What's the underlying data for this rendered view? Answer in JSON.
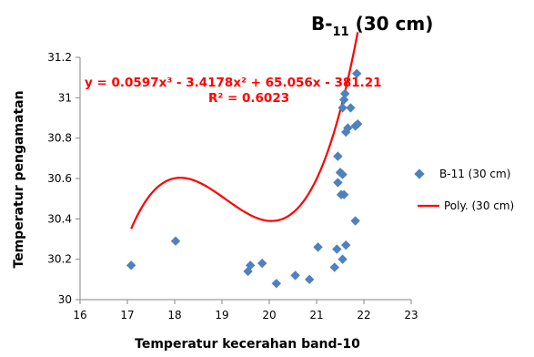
{
  "chart_data": {
    "type": "scatter",
    "title": {
      "prefix": "B-",
      "subscript": "11",
      "suffix": " (30 cm)"
    },
    "xlabel": "Temperatur kecerahan band-10",
    "ylabel": "Temperatur pengamatan",
    "xlim": [
      16,
      23
    ],
    "ylim": [
      30,
      31.2
    ],
    "x_ticks": [
      16,
      17,
      18,
      19,
      20,
      21,
      22,
      23
    ],
    "y_ticks": [
      30,
      30.2,
      30.4,
      30.6,
      30.8,
      31,
      31.2
    ],
    "x_tick_labels": [
      "16",
      "17",
      "18",
      "19",
      "20",
      "21",
      "22",
      "23"
    ],
    "y_tick_labels": [
      "30",
      "30.2",
      "30.4",
      "30.6",
      "30.8",
      "31",
      "31.2"
    ],
    "grid": false,
    "legend_position": "right",
    "series": [
      {
        "name": "B-11 (30 cm)",
        "color": "#4F81BD",
        "marker": "diamond",
        "points": [
          {
            "x": 17.08,
            "y": 30.17
          },
          {
            "x": 18.02,
            "y": 30.29
          },
          {
            "x": 19.55,
            "y": 30.14
          },
          {
            "x": 19.6,
            "y": 30.17
          },
          {
            "x": 19.85,
            "y": 30.18
          },
          {
            "x": 20.15,
            "y": 30.08
          },
          {
            "x": 20.55,
            "y": 30.12
          },
          {
            "x": 20.85,
            "y": 30.1
          },
          {
            "x": 21.03,
            "y": 30.26
          },
          {
            "x": 21.38,
            "y": 30.16
          },
          {
            "x": 21.43,
            "y": 30.25
          },
          {
            "x": 21.55,
            "y": 30.2
          },
          {
            "x": 21.62,
            "y": 30.27
          },
          {
            "x": 21.82,
            "y": 30.39
          },
          {
            "x": 21.52,
            "y": 30.52
          },
          {
            "x": 21.58,
            "y": 30.52
          },
          {
            "x": 21.45,
            "y": 30.58
          },
          {
            "x": 21.5,
            "y": 30.63
          },
          {
            "x": 21.55,
            "y": 30.62
          },
          {
            "x": 21.45,
            "y": 30.71
          },
          {
            "x": 21.62,
            "y": 30.83
          },
          {
            "x": 21.66,
            "y": 30.85
          },
          {
            "x": 21.82,
            "y": 30.86
          },
          {
            "x": 21.87,
            "y": 30.87
          },
          {
            "x": 21.55,
            "y": 30.95
          },
          {
            "x": 21.72,
            "y": 30.95
          },
          {
            "x": 21.58,
            "y": 30.99
          },
          {
            "x": 21.6,
            "y": 31.02
          },
          {
            "x": 21.85,
            "y": 31.12
          }
        ]
      },
      {
        "name": "Poly. (30 cm)",
        "color": "#FF0000",
        "type": "polynomial-trendline",
        "coefficients": [
          0.0597,
          -3.4178,
          65.056,
          -381.21
        ],
        "x_range": [
          17.08,
          21.87
        ]
      }
    ],
    "annotations": {
      "equation": "y = 0.0597x³ - 3.4178x² + 65.056x - 381.21",
      "r_squared": "R² = 0.6023",
      "color": "#FF0000"
    }
  }
}
